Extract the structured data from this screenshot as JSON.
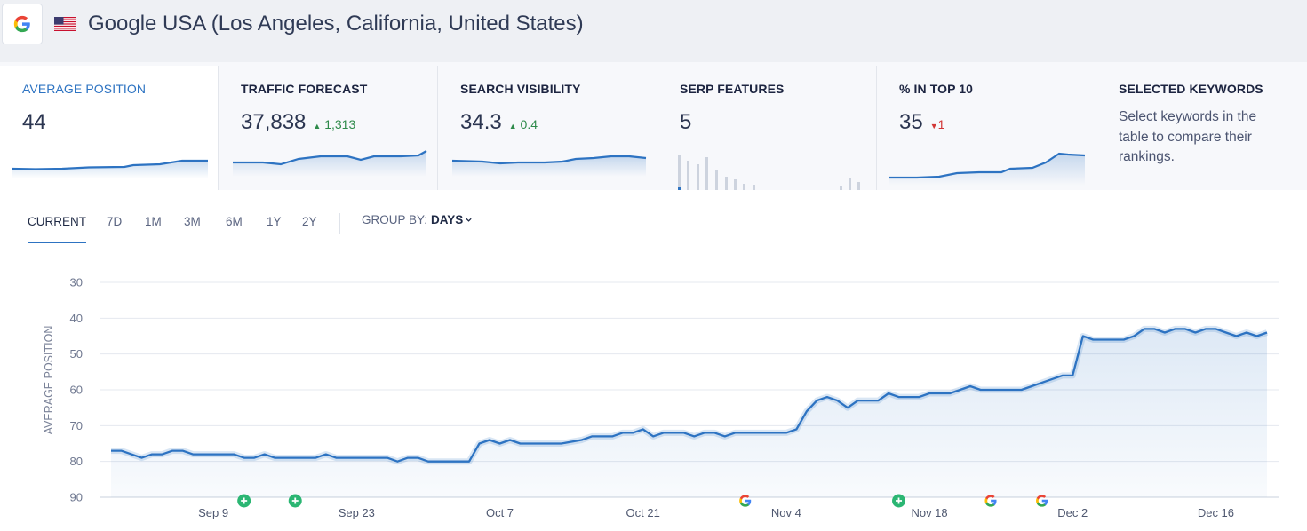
{
  "header": {
    "engine_icon": "google-g-icon",
    "flag_icon": "us-flag-icon",
    "title": "Google USA (Los Angeles, California, United States)"
  },
  "cards": {
    "average_position": {
      "label": "AVERAGE POSITION",
      "value": "44"
    },
    "traffic_forecast": {
      "label": "TRAFFIC FORECAST",
      "value": "37,838",
      "delta": "1,313",
      "delta_dir": "up"
    },
    "search_visibility": {
      "label": "SEARCH VISIBILITY",
      "value": "34.3",
      "delta": "0.4",
      "delta_dir": "up"
    },
    "serp_features": {
      "label": "SERP FEATURES",
      "value": "5"
    },
    "top10": {
      "label": "% IN TOP 10",
      "value": "35",
      "delta": "1",
      "delta_dir": "down"
    },
    "selected_keywords": {
      "label": "SELECTED KEYWORDS",
      "description": "Select keywords in the table to compare their rankings."
    }
  },
  "tabs": {
    "items": [
      "CURRENT",
      "7D",
      "1M",
      "3M",
      "6M",
      "1Y",
      "2Y"
    ],
    "active": "CURRENT",
    "group_by_label": "GROUP BY:",
    "group_by_value": "DAYS"
  },
  "colors": {
    "accent": "#2d73c2",
    "up": "#2e8a4a",
    "down": "#d23636",
    "event_plus": "#2bb673"
  },
  "chart_data": {
    "type": "area",
    "ylabel": "AVERAGE POSITION",
    "y_ticks": [
      30,
      40,
      50,
      60,
      70,
      80,
      90
    ],
    "ylim": [
      30,
      90
    ],
    "y_inverted": true,
    "grid": true,
    "x_tick_labels": [
      "Sep 9",
      "Sep 23",
      "Oct 7",
      "Oct 21",
      "Nov 4",
      "Nov 18",
      "Dec 2",
      "Dec 16"
    ],
    "x_tick_days": [
      10,
      24,
      38,
      52,
      66,
      80,
      94,
      108
    ],
    "day_range": [
      0,
      113
    ],
    "series": [
      {
        "points": [
          [
            0,
            77
          ],
          [
            1,
            77
          ],
          [
            2,
            78
          ],
          [
            3,
            79
          ],
          [
            4,
            78
          ],
          [
            5,
            78
          ],
          [
            6,
            77
          ],
          [
            7,
            77
          ],
          [
            8,
            78
          ],
          [
            9,
            78
          ],
          [
            10,
            78
          ],
          [
            11,
            78
          ],
          [
            12,
            78
          ],
          [
            13,
            79
          ],
          [
            14,
            79
          ],
          [
            15,
            78
          ],
          [
            16,
            79
          ],
          [
            17,
            79
          ],
          [
            18,
            79
          ],
          [
            19,
            79
          ],
          [
            20,
            79
          ],
          [
            21,
            78
          ],
          [
            22,
            79
          ],
          [
            23,
            79
          ],
          [
            24,
            79
          ],
          [
            25,
            79
          ],
          [
            26,
            79
          ],
          [
            27,
            79
          ],
          [
            28,
            80
          ],
          [
            29,
            79
          ],
          [
            30,
            79
          ],
          [
            31,
            80
          ],
          [
            32,
            80
          ],
          [
            33,
            80
          ],
          [
            34,
            80
          ],
          [
            35,
            80
          ],
          [
            36,
            75
          ],
          [
            37,
            74
          ],
          [
            38,
            75
          ],
          [
            39,
            74
          ],
          [
            40,
            75
          ],
          [
            41,
            75
          ],
          [
            42,
            75
          ],
          [
            43,
            75
          ],
          [
            44,
            75
          ],
          [
            45,
            74.5
          ],
          [
            46,
            74
          ],
          [
            47,
            73
          ],
          [
            48,
            73
          ],
          [
            49,
            73
          ],
          [
            50,
            72
          ],
          [
            51,
            72
          ],
          [
            52,
            71
          ],
          [
            53,
            73
          ],
          [
            54,
            72
          ],
          [
            55,
            72
          ],
          [
            56,
            72
          ],
          [
            57,
            73
          ],
          [
            58,
            72
          ],
          [
            59,
            72
          ],
          [
            60,
            73
          ],
          [
            61,
            72
          ],
          [
            62,
            72
          ],
          [
            63,
            72
          ],
          [
            64,
            72
          ],
          [
            65,
            72
          ],
          [
            66,
            72
          ],
          [
            67,
            71
          ],
          [
            68,
            66
          ],
          [
            69,
            63
          ],
          [
            70,
            62
          ],
          [
            71,
            63
          ],
          [
            72,
            65
          ],
          [
            73,
            63
          ],
          [
            74,
            63
          ],
          [
            75,
            63
          ],
          [
            76,
            61
          ],
          [
            77,
            62
          ],
          [
            78,
            62
          ],
          [
            79,
            62
          ],
          [
            80,
            61
          ],
          [
            81,
            61
          ],
          [
            82,
            61
          ],
          [
            83,
            60
          ],
          [
            84,
            59
          ],
          [
            85,
            60
          ],
          [
            86,
            60
          ],
          [
            87,
            60
          ],
          [
            88,
            60
          ],
          [
            89,
            60
          ],
          [
            90,
            59
          ],
          [
            91,
            58
          ],
          [
            92,
            57
          ],
          [
            93,
            56
          ],
          [
            94,
            56
          ],
          [
            95,
            45
          ],
          [
            96,
            46
          ],
          [
            97,
            46
          ],
          [
            98,
            46
          ],
          [
            99,
            46
          ],
          [
            100,
            45
          ],
          [
            101,
            43
          ],
          [
            102,
            43
          ],
          [
            103,
            44
          ],
          [
            104,
            43
          ],
          [
            105,
            43
          ],
          [
            106,
            44
          ],
          [
            107,
            43
          ],
          [
            108,
            43
          ],
          [
            109,
            44
          ],
          [
            110,
            45
          ],
          [
            111,
            44
          ],
          [
            112,
            45
          ],
          [
            113,
            44
          ]
        ]
      }
    ],
    "events": [
      {
        "day": 13,
        "type": "plus"
      },
      {
        "day": 18,
        "type": "plus"
      },
      {
        "day": 62,
        "type": "google"
      },
      {
        "day": 77,
        "type": "plus"
      },
      {
        "day": 86,
        "type": "google"
      },
      {
        "day": 91,
        "type": "google"
      }
    ]
  }
}
